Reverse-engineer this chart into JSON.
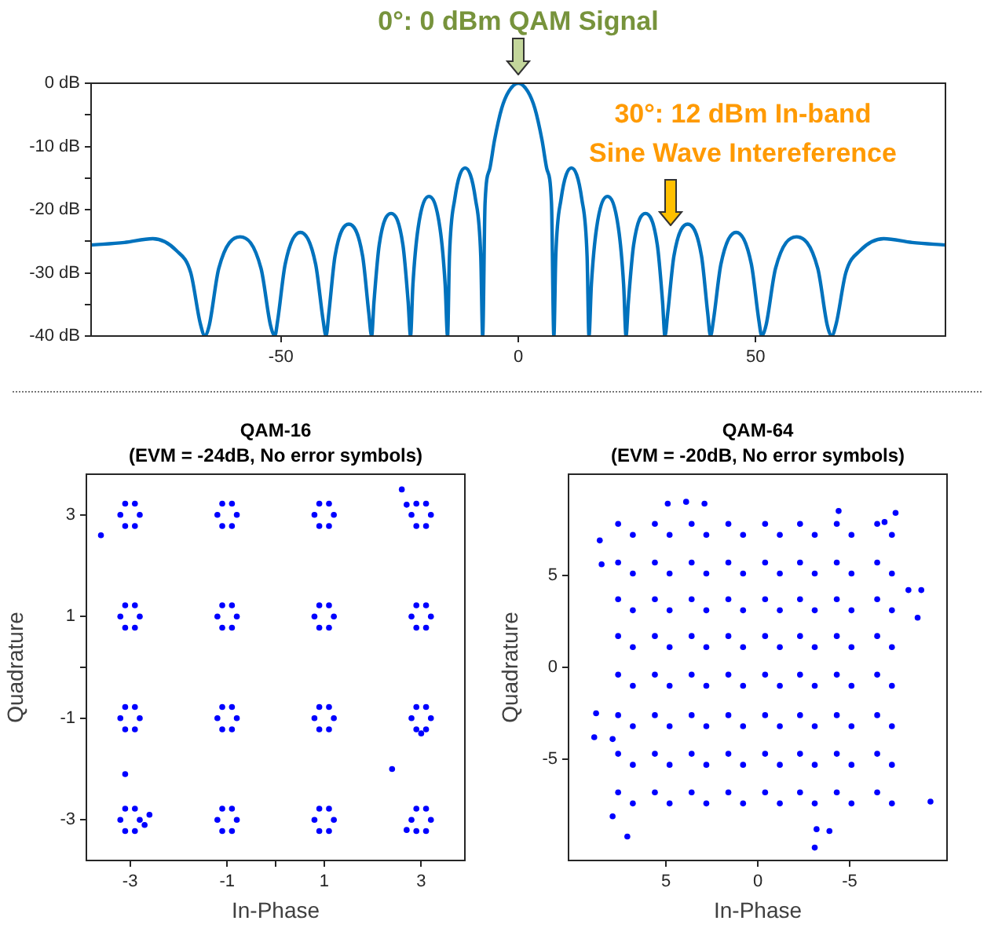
{
  "chart_data": [
    {
      "type": "line",
      "annotations": [
        "0°: 0 dBm QAM Signal",
        "30°: 12 dBm In-band\nSine Wave Intereference"
      ],
      "x": [
        -90,
        -83,
        -77,
        -72,
        -69,
        -67,
        -66,
        -65.1,
        -63.1,
        -58.6,
        -54.2,
        -52.2,
        -51.3,
        -50.7,
        -49.1,
        -45.9,
        -42.7,
        -41.1,
        -40.5,
        -39.9,
        -38.6,
        -35.7,
        -32.8,
        -31.5,
        -30.9,
        -30.4,
        -29.3,
        -26.8,
        -24.3,
        -23.2,
        -22.7,
        -22.2,
        -21.1,
        -18.8,
        -16.5,
        -15.4,
        -14.9,
        -14.5,
        -13.4,
        -11.2,
        -9,
        -7.9,
        -7.5,
        -7,
        -6,
        -5,
        -3.5,
        -2,
        0,
        2,
        3.5,
        5,
        6,
        7,
        7.5,
        7.9,
        9,
        11.2,
        13.4,
        14.5,
        14.9,
        15.4,
        16.5,
        18.8,
        21.1,
        22.2,
        22.7,
        23.2,
        24.3,
        26.8,
        29.3,
        30.4,
        30.9,
        31.5,
        32.8,
        35.7,
        38.6,
        39.9,
        40.5,
        41.1,
        42.7,
        45.9,
        49.1,
        50.7,
        51.3,
        52.2,
        54.2,
        58.6,
        63.1,
        65.1,
        66,
        67,
        69,
        72,
        77,
        83,
        90
      ],
      "series": [
        {
          "color": "#0072bd",
          "values": [
            -25.6,
            -25.2,
            -24.6,
            -26.5,
            -30,
            -38,
            -40,
            -38.3,
            -29.3,
            -24.3,
            -29.3,
            -38.3,
            -40,
            -37.6,
            -28.6,
            -23.6,
            -28.6,
            -37.6,
            -40,
            -36.3,
            -27.3,
            -22.3,
            -27.3,
            -36.3,
            -40,
            -34.6,
            -25.6,
            -20.6,
            -25.6,
            -34.6,
            -40,
            -31.9,
            -22.9,
            -17.9,
            -22.9,
            -31.9,
            -40,
            -27.4,
            -18.4,
            -13.4,
            -18.4,
            -27.4,
            -40,
            -19,
            -13.5,
            -9,
            -4,
            -1.3,
            0,
            -1.3,
            -4,
            -9,
            -13.5,
            -19,
            -40,
            -27.4,
            -18.4,
            -13.4,
            -18.4,
            -27.4,
            -40,
            -31.9,
            -22.9,
            -17.9,
            -22.9,
            -31.9,
            -40,
            -34.6,
            -25.6,
            -20.6,
            -25.6,
            -34.6,
            -40,
            -36.3,
            -27.3,
            -22.3,
            -27.3,
            -36.3,
            -40,
            -37.6,
            -28.6,
            -23.6,
            -28.6,
            -37.6,
            -40,
            -38.3,
            -29.3,
            -24.3,
            -29.3,
            -38.3,
            -40,
            -38,
            -30,
            -26.5,
            -24.6,
            -25.2,
            -25.6
          ]
        }
      ],
      "xlim": [
        -90,
        90
      ],
      "xticks": [
        -50,
        0,
        50
      ],
      "ylim": [
        -40,
        0
      ],
      "yticks": [
        {
          "value": -40,
          "label": "-40 dB"
        },
        {
          "value": -35,
          "label": null
        },
        {
          "value": -30,
          "label": "-30 dB"
        },
        {
          "value": -25,
          "label": null
        },
        {
          "value": -20,
          "label": "-20 dB"
        },
        {
          "value": -15,
          "label": null
        },
        {
          "value": -10,
          "label": "-10 dB"
        },
        {
          "value": -5,
          "label": null
        },
        {
          "value": 0,
          "label": "0 dB"
        }
      ]
    },
    {
      "type": "scatter",
      "title": "QAM-16",
      "subtitle": "(EVM = -24dB, No error symbols)",
      "xlabel": "In-Phase",
      "ylabel": "Quadrature",
      "marker": "circle",
      "x": [
        -2.8,
        -2.9,
        -3.1,
        -3.2,
        -3.1,
        -2.9,
        -0.8,
        -0.9,
        -1.1,
        -1.2,
        -1.1,
        -0.9,
        1.2,
        1.1,
        0.9,
        0.8,
        0.9,
        1.1,
        3.2,
        3.1,
        2.9,
        2.8,
        2.9,
        3.1,
        -2.8,
        -2.9,
        -3.1,
        -3.2,
        -3.1,
        -2.9,
        -0.8,
        -0.9,
        -1.1,
        -1.2,
        -1.1,
        -0.9,
        1.2,
        1.1,
        0.9,
        0.8,
        0.9,
        1.1,
        3.2,
        3.1,
        2.9,
        2.8,
        2.9,
        3.1,
        -2.8,
        -2.9,
        -3.1,
        -3.2,
        -3.1,
        -2.9,
        -0.8,
        -0.9,
        -1.1,
        -1.2,
        -1.1,
        -0.9,
        1.2,
        1.1,
        0.9,
        0.8,
        0.9,
        1.1,
        3.2,
        3.1,
        2.9,
        2.8,
        2.9,
        3.1,
        -2.8,
        -2.9,
        -3.1,
        -3.2,
        -3.1,
        -2.9,
        -0.8,
        -0.9,
        -1.1,
        -1.2,
        -1.1,
        -0.9,
        1.2,
        1.1,
        0.9,
        0.8,
        0.9,
        1.1,
        3.2,
        3.1,
        2.9,
        2.8,
        2.9,
        3.1,
        -3.6,
        2.6,
        2.7,
        -3.1,
        2.4,
        -2.6,
        -2.7,
        2.7,
        3
      ],
      "series": [
        {
          "color": "#0000ff",
          "values": [
            3,
            3.22,
            3.22,
            3,
            2.78,
            2.78,
            3,
            3.22,
            3.22,
            3,
            2.78,
            2.78,
            3,
            3.22,
            3.22,
            3,
            2.78,
            2.78,
            3,
            3.22,
            3.22,
            3,
            2.78,
            2.78,
            1,
            1.22,
            1.22,
            1,
            0.78,
            0.78,
            1,
            1.22,
            1.22,
            1,
            0.78,
            0.78,
            1,
            1.22,
            1.22,
            1,
            0.78,
            0.78,
            1,
            1.22,
            1.22,
            1,
            0.78,
            0.78,
            -1,
            -0.78,
            -0.78,
            -1,
            -1.22,
            -1.22,
            -1,
            -0.78,
            -0.78,
            -1,
            -1.22,
            -1.22,
            -1,
            -0.78,
            -0.78,
            -1,
            -1.22,
            -1.22,
            -1,
            -0.78,
            -0.78,
            -1,
            -1.22,
            -1.22,
            -3,
            -2.78,
            -2.78,
            -3,
            -3.22,
            -3.22,
            -3,
            -2.78,
            -2.78,
            -3,
            -3.22,
            -3.22,
            -3,
            -2.78,
            -2.78,
            -3,
            -3.22,
            -3.22,
            -3,
            -2.78,
            -2.78,
            -3,
            -3.22,
            -3.22,
            2.6,
            3.5,
            3.2,
            -2.1,
            -2,
            -2.9,
            -3.1,
            -3.2,
            -1.3
          ]
        }
      ],
      "xlim": [
        -3.9,
        3.9
      ],
      "xticks": [
        -3,
        -1,
        {
          "value": 0,
          "label": null
        },
        1,
        3
      ],
      "ylim": [
        -3.8,
        3.8
      ],
      "yticks": [
        -3,
        -1,
        {
          "value": 0,
          "label": null
        },
        1,
        3
      ]
    },
    {
      "type": "scatter",
      "title": "QAM-64",
      "subtitle": "(EVM = -20dB, No error symbols)",
      "xlabel": "In-Phase",
      "ylabel": "Quadrature",
      "marker": "circle",
      "x": [
        7.6,
        6.8,
        5.6,
        4.8,
        3.6,
        2.8,
        1.6,
        0.8,
        -0.4,
        -1.2,
        -2.3,
        -3.1,
        -4.3,
        -5.1,
        -6.5,
        -7.3,
        7.6,
        6.8,
        5.6,
        4.8,
        3.6,
        2.8,
        1.6,
        0.8,
        -0.4,
        -1.2,
        -2.3,
        -3.1,
        -4.3,
        -5.1,
        -6.5,
        -7.3,
        7.6,
        6.8,
        5.6,
        4.8,
        3.6,
        2.8,
        1.6,
        0.8,
        -0.4,
        -1.2,
        -2.3,
        -3.1,
        -4.3,
        -5.1,
        -6.5,
        -7.3,
        7.6,
        6.8,
        5.6,
        4.8,
        3.6,
        2.8,
        1.6,
        0.8,
        -0.4,
        -1.2,
        -2.3,
        -3.1,
        -4.3,
        -5.1,
        -6.5,
        -7.3,
        7.6,
        6.8,
        5.6,
        4.8,
        3.6,
        2.8,
        1.6,
        0.8,
        -0.4,
        -1.2,
        -2.3,
        -3.1,
        -4.3,
        -5.1,
        -6.5,
        -7.3,
        7.6,
        6.8,
        5.6,
        4.8,
        3.6,
        2.8,
        1.6,
        0.8,
        -0.4,
        -1.2,
        -2.3,
        -3.1,
        -4.3,
        -5.1,
        -6.5,
        -7.3,
        7.6,
        6.8,
        5.6,
        4.8,
        3.6,
        2.8,
        1.6,
        0.8,
        -0.4,
        -1.2,
        -2.3,
        -3.1,
        -4.3,
        -5.1,
        -6.5,
        -7.3,
        7.6,
        6.8,
        5.6,
        4.8,
        3.6,
        2.8,
        1.6,
        0.8,
        -0.4,
        -1.2,
        -2.3,
        -3.1,
        -4.3,
        -5.1,
        -6.5,
        -7.3,
        8.6,
        8.5,
        4.9,
        3.9,
        2.9,
        -8.2,
        -8.9,
        -8.7,
        8.8,
        8.9,
        7.9,
        7.1,
        -3.1,
        -3.2,
        -3.9,
        -9.4,
        -6.9,
        -7.5,
        7.9,
        -4.4
      ],
      "series": [
        {
          "color": "#0000ff",
          "values": [
            7.8,
            7.2,
            7.8,
            7.2,
            7.8,
            7.2,
            7.8,
            7.2,
            7.8,
            7.2,
            7.8,
            7.2,
            7.8,
            7.2,
            7.8,
            7.2,
            5.7,
            5.1,
            5.7,
            5.1,
            5.7,
            5.1,
            5.7,
            5.1,
            5.7,
            5.1,
            5.7,
            5.1,
            5.7,
            5.1,
            5.7,
            5.1,
            3.7,
            3.1,
            3.7,
            3.1,
            3.7,
            3.1,
            3.7,
            3.1,
            3.7,
            3.1,
            3.7,
            3.1,
            3.7,
            3.1,
            3.7,
            3.1,
            1.7,
            1.1,
            1.7,
            1.1,
            1.7,
            1.1,
            1.7,
            1.1,
            1.7,
            1.1,
            1.7,
            1.1,
            1.7,
            1.1,
            1.7,
            1.1,
            -0.4,
            -1,
            -0.4,
            -1,
            -0.4,
            -1,
            -0.4,
            -1,
            -0.4,
            -1,
            -0.4,
            -1,
            -0.4,
            -1,
            -0.4,
            -1,
            -2.6,
            -3.2,
            -2.6,
            -3.2,
            -2.6,
            -3.2,
            -2.6,
            -3.2,
            -2.6,
            -3.2,
            -2.6,
            -3.2,
            -2.6,
            -3.2,
            -2.6,
            -3.2,
            -4.7,
            -5.3,
            -4.7,
            -5.3,
            -4.7,
            -5.3,
            -4.7,
            -5.3,
            -4.7,
            -5.3,
            -4.7,
            -5.3,
            -4.7,
            -5.3,
            -4.7,
            -5.3,
            -6.8,
            -7.4,
            -6.8,
            -7.4,
            -6.8,
            -7.4,
            -6.8,
            -7.4,
            -6.8,
            -7.4,
            -6.8,
            -7.4,
            -6.8,
            -7.4,
            -6.8,
            -7.4,
            6.9,
            5.6,
            8.9,
            9,
            8.9,
            4.2,
            4.2,
            2.7,
            -2.5,
            -3.8,
            -3.9,
            -9.2,
            -9.8,
            -8.8,
            -8.9,
            -7.3,
            7.9,
            8.4,
            -8.1,
            8.5
          ]
        }
      ],
      "xlim": [
        10.3,
        -10.3
      ],
      "xticks": [
        5,
        0,
        -5
      ],
      "ylim": [
        -10.5,
        10.5
      ],
      "yticks": [
        -5,
        0,
        5
      ]
    }
  ]
}
